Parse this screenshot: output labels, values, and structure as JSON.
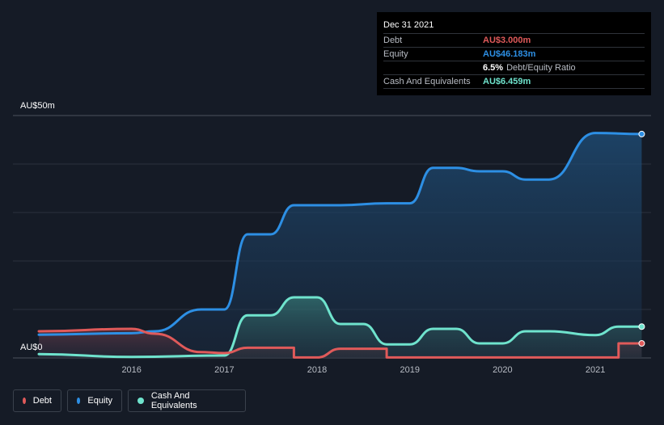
{
  "tooltip": {
    "date": "Dec 31 2021",
    "debt_label": "Debt",
    "debt_value": "AU$3.000m",
    "equity_label": "Equity",
    "equity_value": "AU$46.183m",
    "ratio_pct": "6.5%",
    "ratio_label": "Debt/Equity Ratio",
    "cash_label": "Cash And Equivalents",
    "cash_value": "AU$6.459m"
  },
  "colors": {
    "background": "#151b26",
    "debt": "#e05a5a",
    "equity": "#2d8fe4",
    "cash": "#6fe3cd"
  },
  "chart_data": {
    "type": "area",
    "y_unit": "AU$m",
    "ylim": [
      0,
      50
    ],
    "y_tick_labels": [
      "AU$0",
      "AU$50m"
    ],
    "x_tick_labels": [
      "2016",
      "2017",
      "2018",
      "2019",
      "2020",
      "2021"
    ],
    "grid": true,
    "legend_position": "bottom-left",
    "series": [
      {
        "name": "Debt",
        "color": "#e05a5a",
        "points": [
          [
            "2015-06",
            5.5
          ],
          [
            "2016-06",
            6.0
          ],
          [
            "2016-09",
            5.0
          ],
          [
            "2017-03",
            1.2
          ],
          [
            "2017-06",
            1.0
          ],
          [
            "2017-09",
            2.1
          ],
          [
            "2018-03",
            2.1
          ],
          [
            "2018-03",
            0.1
          ],
          [
            "2018-06",
            0.1
          ],
          [
            "2018-09",
            1.9
          ],
          [
            "2019-03",
            1.9
          ],
          [
            "2019-03",
            0.1
          ],
          [
            "2021-09",
            0.1
          ],
          [
            "2021-09",
            3.0
          ],
          [
            "2021-12",
            3.0
          ]
        ]
      },
      {
        "name": "Equity",
        "color": "#2d8fe4",
        "points": [
          [
            "2015-06",
            4.8
          ],
          [
            "2016-06",
            5.1
          ],
          [
            "2016-09",
            5.5
          ],
          [
            "2017-03",
            10.0
          ],
          [
            "2017-06",
            10.0
          ],
          [
            "2017-09",
            25.5
          ],
          [
            "2017-12",
            25.5
          ],
          [
            "2018-03",
            31.5
          ],
          [
            "2018-09",
            31.5
          ],
          [
            "2019-03",
            31.9
          ],
          [
            "2019-06",
            31.9
          ],
          [
            "2019-09",
            39.2
          ],
          [
            "2019-12",
            39.2
          ],
          [
            "2020-03",
            38.5
          ],
          [
            "2020-06",
            38.5
          ],
          [
            "2020-09",
            36.8
          ],
          [
            "2020-12",
            36.8
          ],
          [
            "2021-06",
            46.4
          ],
          [
            "2021-12",
            46.183
          ]
        ]
      },
      {
        "name": "Cash And Equivalents",
        "color": "#6fe3cd",
        "points": [
          [
            "2015-06",
            0.8
          ],
          [
            "2016-06",
            0.2
          ],
          [
            "2017-06",
            0.5
          ],
          [
            "2017-09",
            8.8
          ],
          [
            "2017-12",
            8.8
          ],
          [
            "2018-03",
            12.5
          ],
          [
            "2018-06",
            12.5
          ],
          [
            "2018-09",
            7.0
          ],
          [
            "2018-12",
            7.0
          ],
          [
            "2019-03",
            2.8
          ],
          [
            "2019-06",
            2.8
          ],
          [
            "2019-09",
            6.0
          ],
          [
            "2019-12",
            6.0
          ],
          [
            "2020-03",
            3.0
          ],
          [
            "2020-06",
            3.0
          ],
          [
            "2020-09",
            5.5
          ],
          [
            "2020-12",
            5.5
          ],
          [
            "2021-06",
            4.7
          ],
          [
            "2021-09",
            6.459
          ],
          [
            "2021-12",
            6.459
          ]
        ]
      }
    ]
  }
}
